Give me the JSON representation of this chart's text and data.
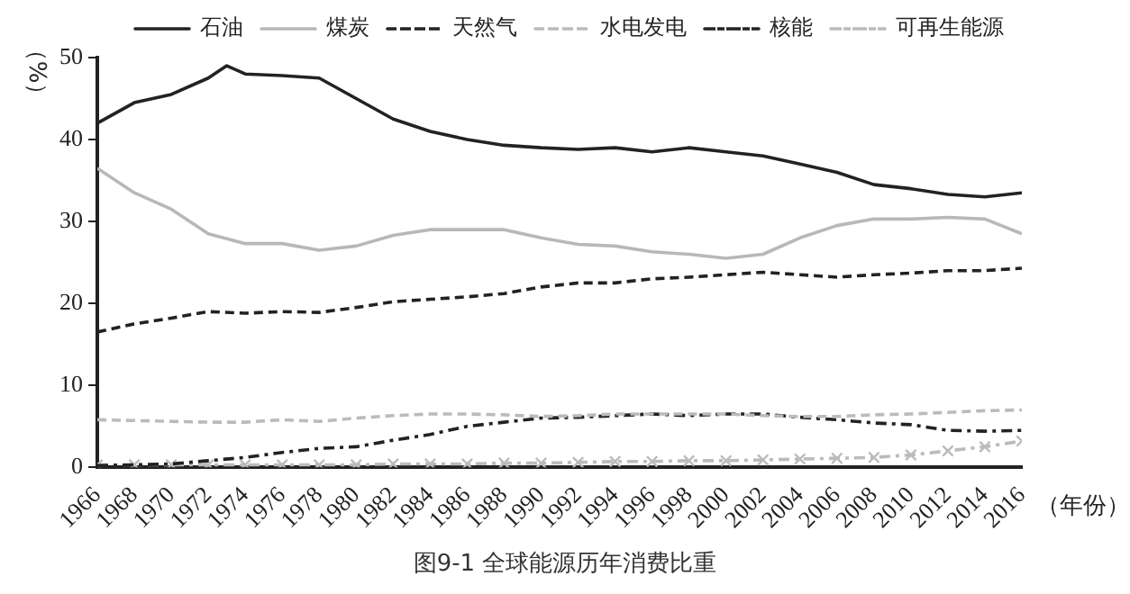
{
  "chart_data": {
    "type": "line",
    "ylabel": "（%）",
    "xlabel": "（年份）",
    "annotations": [
      "图9-1 全球能源历年消费比重"
    ],
    "x": [
      1966,
      1968,
      1970,
      1972,
      1974,
      1976,
      1978,
      1980,
      1982,
      1984,
      1986,
      1988,
      1990,
      1992,
      1994,
      1996,
      1998,
      2000,
      2002,
      2004,
      2006,
      2008,
      2010,
      2012,
      2014,
      2016
    ],
    "xlim": [
      1966,
      2016
    ],
    "xticks": [
      1966,
      1968,
      1970,
      1972,
      1974,
      1976,
      1978,
      1980,
      1982,
      1984,
      1986,
      1988,
      1990,
      1992,
      1994,
      1996,
      1998,
      2000,
      2002,
      2004,
      2006,
      2008,
      2010,
      2012,
      2014,
      2016
    ],
    "ylim": [
      0,
      50
    ],
    "yticks": [
      0,
      10,
      20,
      30,
      40,
      50
    ],
    "grid": false,
    "legend": "top",
    "series": [
      {
        "name": "石油",
        "color": "#222222",
        "line_style": "solid",
        "marker": "none",
        "x": [
          1966,
          1968,
          1970,
          1972,
          1973,
          1974,
          1976,
          1978,
          1980,
          1982,
          1984,
          1986,
          1988,
          1990,
          1992,
          1994,
          1996,
          1998,
          2000,
          2002,
          2004,
          2006,
          2008,
          2010,
          2012,
          2014,
          2016
        ],
        "values": [
          42,
          44.5,
          45.5,
          47.5,
          49,
          48,
          47.8,
          47.5,
          45,
          42.5,
          41,
          40,
          39.3,
          39,
          38.8,
          39,
          38.5,
          39,
          38.5,
          38,
          37,
          36,
          34.5,
          34,
          33.3,
          33,
          33.5
        ]
      },
      {
        "name": "煤炭",
        "color": "#b8b8b8",
        "line_style": "solid",
        "marker": "none",
        "values": [
          36.5,
          33.5,
          31.5,
          28.5,
          27.3,
          27.3,
          26.5,
          27,
          28.3,
          29,
          29,
          29,
          28,
          27.2,
          27,
          26.3,
          26,
          25.5,
          26,
          28,
          29.5,
          30.3,
          30.3,
          30.5,
          30.3,
          28.5
        ]
      },
      {
        "name": "天然气",
        "color": "#222222",
        "line_style": "dashed",
        "marker": "none",
        "values": [
          16.5,
          17.5,
          18.2,
          19,
          18.8,
          19,
          18.9,
          19.5,
          20.2,
          20.5,
          20.8,
          21.2,
          22,
          22.5,
          22.5,
          23,
          23.2,
          23.5,
          23.8,
          23.5,
          23.2,
          23.5,
          23.7,
          24,
          24,
          24.3
        ]
      },
      {
        "name": "水电发电",
        "color": "#bbbbbb",
        "line_style": "dashed",
        "marker": "none",
        "values": [
          5.8,
          5.7,
          5.6,
          5.5,
          5.5,
          5.8,
          5.6,
          6,
          6.3,
          6.5,
          6.5,
          6.4,
          6.2,
          6.3,
          6.5,
          6.5,
          6.5,
          6.5,
          6.3,
          6.2,
          6.2,
          6.4,
          6.5,
          6.7,
          6.9,
          7
        ]
      },
      {
        "name": "核能",
        "color": "#222222",
        "line_style": "dashdot",
        "marker": "none",
        "values": [
          0.2,
          0.3,
          0.4,
          0.8,
          1.2,
          1.8,
          2.3,
          2.5,
          3.3,
          4,
          5,
          5.5,
          6,
          6.1,
          6.3,
          6.5,
          6.3,
          6.5,
          6.5,
          6.1,
          5.8,
          5.4,
          5.2,
          4.5,
          4.4,
          4.5
        ]
      },
      {
        "name": "可再生能源",
        "color": "#bbbbbb",
        "line_style": "dashdot",
        "marker": "cross",
        "values": [
          0.3,
          0.3,
          0.3,
          0.3,
          0.3,
          0.3,
          0.3,
          0.3,
          0.4,
          0.4,
          0.4,
          0.5,
          0.5,
          0.6,
          0.7,
          0.7,
          0.8,
          0.8,
          0.9,
          1,
          1.1,
          1.2,
          1.5,
          2,
          2.5,
          3.2
        ]
      }
    ]
  }
}
